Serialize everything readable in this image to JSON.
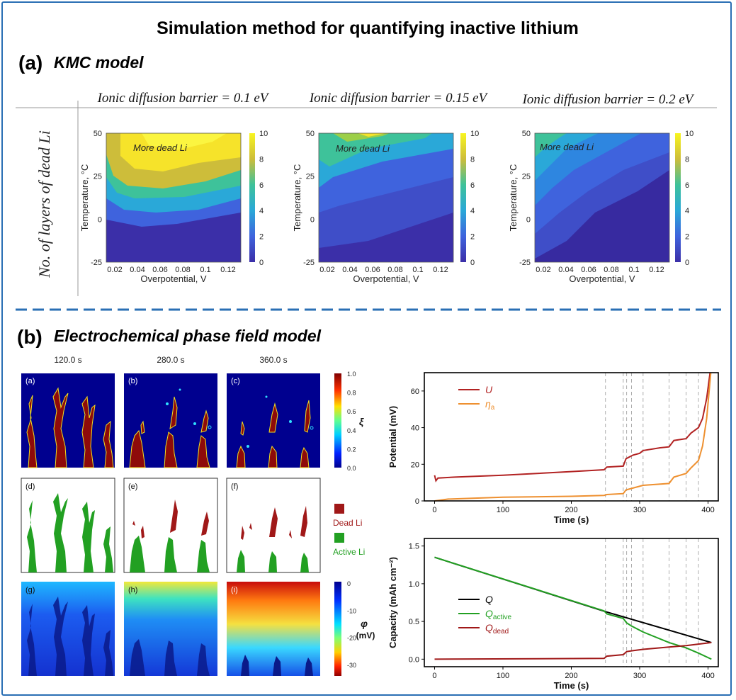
{
  "title": "Simulation method for quantifying inactive lithium",
  "section_a": {
    "letter": "(a)",
    "name": "KMC model"
  },
  "section_b": {
    "letter": "(b)",
    "name": "Electrochemical phase field model"
  },
  "kmc": {
    "row_label": "No. of layers of dead Li",
    "annotation": "More dead Li",
    "xlabel": "Overpotential, V",
    "ylabel": "Temperature, °C",
    "x_ticks": [
      "0.02",
      "0.04",
      "0.06",
      "0.08",
      "0.1",
      "0.12"
    ],
    "y_ticks": [
      "50",
      "25",
      "0",
      "-25"
    ],
    "cbar_ticks": [
      "10",
      "8",
      "6",
      "4",
      "2",
      "0"
    ],
    "panels": [
      {
        "title": "Ionic diffusion barrier = 0.1 eV"
      },
      {
        "title": "Ionic diffusion barrier = 0.15 eV"
      },
      {
        "title": "Ionic diffusion barrier = 0.2 eV"
      }
    ]
  },
  "phase_field": {
    "times": [
      "120.0 s",
      "280.0 s",
      "360.0 s"
    ],
    "row1_labels": [
      "(a)",
      "(b)",
      "(c)"
    ],
    "row2_labels": [
      "(d)",
      "(e)",
      "(f)"
    ],
    "row3_labels": [
      "(g)",
      "(h)",
      "(i)"
    ],
    "xi_symbol": "ξ",
    "xi_ticks": [
      "1.0",
      "0.8",
      "0.6",
      "0.4",
      "0.2",
      "0.0"
    ],
    "phi_symbol": "φ",
    "phi_unit": "(mV)",
    "phi_ticks": [
      "0",
      "-10",
      "-20",
      "-30"
    ],
    "legend_dead": "Dead Li",
    "legend_active": "Active Li",
    "colors": {
      "dead": "#a01818",
      "active": "#22a022"
    }
  },
  "chart_data": [
    {
      "type": "line",
      "xlabel": "Time (s)",
      "ylabel": "Potential (mV)",
      "xlim": [
        -15,
        415
      ],
      "ylim": [
        0,
        70
      ],
      "x_ticks": [
        0,
        100,
        200,
        300,
        400
      ],
      "y_ticks": [
        0,
        20,
        40,
        60
      ],
      "vlines": [
        250,
        276,
        281,
        288,
        305,
        343,
        368,
        386
      ],
      "series": [
        {
          "name": "U",
          "color": "#b22222",
          "x": [
            0,
            2,
            5,
            30,
            100,
            200,
            248,
            252,
            276,
            280,
            290,
            300,
            305,
            330,
            343,
            350,
            368,
            375,
            386,
            392,
            398,
            403
          ],
          "y": [
            14,
            11,
            12.5,
            13,
            14,
            16,
            17,
            18.5,
            19,
            23,
            25,
            26,
            27.5,
            29,
            29.5,
            33,
            34,
            37,
            40,
            45,
            56,
            70
          ]
        },
        {
          "name": "ηa",
          "color": "#ee9030",
          "x": [
            0,
            20,
            100,
            200,
            248,
            252,
            276,
            280,
            290,
            305,
            343,
            350,
            368,
            375,
            386,
            392,
            398,
            404
          ],
          "y": [
            0,
            1,
            2,
            2.5,
            3,
            3.5,
            4,
            6,
            7,
            8.5,
            9.5,
            13,
            15,
            18,
            22,
            30,
            45,
            70
          ]
        }
      ]
    },
    {
      "type": "line",
      "xlabel": "Time (s)",
      "ylabel": "Capacity (mAh cm⁻²)",
      "xlim": [
        -15,
        415
      ],
      "ylim": [
        -0.1,
        1.6
      ],
      "x_ticks": [
        0,
        100,
        200,
        300,
        400
      ],
      "y_ticks": [
        0.0,
        0.5,
        1.0,
        1.5
      ],
      "vlines": [
        250,
        276,
        281,
        288,
        305,
        343,
        368,
        386
      ],
      "series": [
        {
          "name": "Q",
          "color": "#000000",
          "x": [
            0,
            250,
            405
          ],
          "y": [
            1.35,
            0.63,
            0.22
          ]
        },
        {
          "name": "Qactive",
          "color": "#22a022",
          "x": [
            0,
            248,
            252,
            276,
            281,
            288,
            305,
            343,
            368,
            386,
            405
          ],
          "y": [
            1.35,
            0.64,
            0.6,
            0.54,
            0.48,
            0.44,
            0.36,
            0.22,
            0.15,
            0.08,
            0.0
          ]
        },
        {
          "name": "Qdead",
          "color": "#a01818",
          "x": [
            0,
            248,
            252,
            276,
            281,
            288,
            305,
            343,
            368,
            386,
            405
          ],
          "y": [
            0.0,
            0.01,
            0.04,
            0.06,
            0.1,
            0.11,
            0.13,
            0.16,
            0.18,
            0.2,
            0.22
          ]
        }
      ]
    }
  ]
}
